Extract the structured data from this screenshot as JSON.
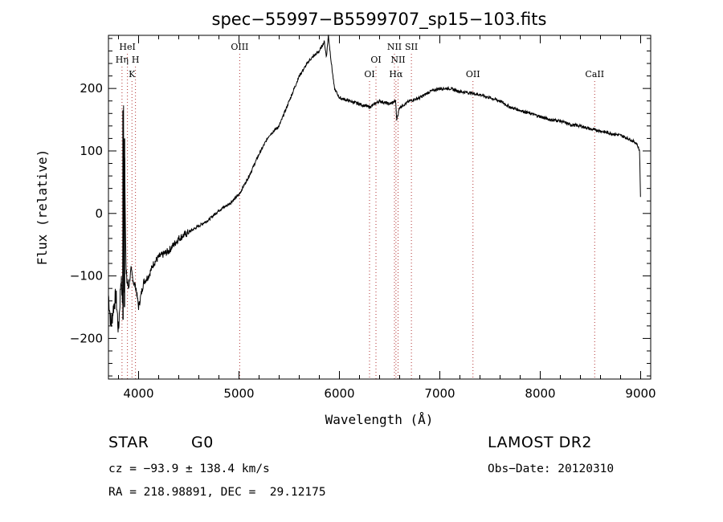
{
  "chart_data": {
    "type": "line",
    "title": "spec−55997−B5599707_sp15−103.fits",
    "xlabel": "Wavelength (Å)",
    "ylabel": "Flux (relative)",
    "xlim": [
      3700,
      9100
    ],
    "ylim": [
      -265,
      285
    ],
    "xticks": [
      4000,
      5000,
      6000,
      7000,
      8000,
      9000
    ],
    "yticks": [
      -200,
      -100,
      0,
      100,
      200
    ],
    "grid": false,
    "line_color": "#000000",
    "marker_color": "#b03030",
    "series": [
      {
        "x": [
          3700,
          3725,
          3750,
          3775,
          3800,
          3825,
          3840,
          3850,
          3855,
          3860,
          3875,
          3900,
          3925,
          3950,
          3975,
          4000,
          4050,
          4100,
          4150,
          4200,
          4300,
          4400,
          4500,
          4600,
          4700,
          4800,
          4900,
          5000,
          5100,
          5200,
          5300,
          5400,
          5500,
          5600,
          5700,
          5800,
          5850,
          5870,
          5890,
          5900,
          5920,
          5950,
          6000,
          6100,
          6200,
          6300,
          6400,
          6500,
          6560,
          6570,
          6600,
          6700,
          6800,
          6900,
          7000,
          7100,
          7200,
          7300,
          7400,
          7500,
          7600,
          7700,
          7800,
          7900,
          8000,
          8100,
          8200,
          8300,
          8400,
          8500,
          8600,
          8700,
          8800,
          8900,
          8960,
          8990,
          9000
        ],
        "y": [
          -130,
          -180,
          -150,
          -130,
          -190,
          -100,
          -150,
          165,
          -175,
          120,
          -100,
          -120,
          -90,
          -110,
          -120,
          -150,
          -110,
          -100,
          -80,
          -70,
          -60,
          -40,
          -30,
          -20,
          -10,
          5,
          15,
          30,
          60,
          95,
          125,
          140,
          180,
          220,
          245,
          260,
          275,
          250,
          285,
          270,
          240,
          200,
          185,
          180,
          175,
          170,
          180,
          175,
          180,
          150,
          170,
          180,
          185,
          195,
          200,
          200,
          195,
          193,
          190,
          185,
          180,
          170,
          165,
          160,
          155,
          150,
          148,
          142,
          140,
          135,
          132,
          128,
          125,
          118,
          112,
          100,
          5
        ]
      }
    ],
    "line_markers": [
      {
        "label": "HeI",
        "x": 3889,
        "row": 1
      },
      {
        "label": "Hη",
        "x": 3835,
        "row": 2
      },
      {
        "label": "H",
        "x": 3969,
        "row": 2
      },
      {
        "label": "K",
        "x": 3934,
        "row": 3
      },
      {
        "label": "OIII",
        "x": 5007,
        "row": 1
      },
      {
        "label": "OI",
        "x": 6364,
        "row": 2
      },
      {
        "label": "OI",
        "x": 6300,
        "row": 3
      },
      {
        "label": "NII",
        "x": 6548,
        "row": 1
      },
      {
        "label": "SII",
        "x": 6717,
        "row": 1
      },
      {
        "label": "NII",
        "x": 6584,
        "row": 2
      },
      {
        "label": "Hα",
        "x": 6563,
        "row": 3
      },
      {
        "label": "OII",
        "x": 7330,
        "row": 3
      },
      {
        "label": "CaII",
        "x": 8542,
        "row": 3
      }
    ]
  },
  "info": {
    "object_class": "STAR",
    "subclass": "G0",
    "survey": "LAMOST DR2",
    "cz": "cz = −93.9 ± 138.4 km/s",
    "obs_date": "Obs−Date: 20120310",
    "coords": "RA = 218.98891, DEC =  29.12175"
  }
}
